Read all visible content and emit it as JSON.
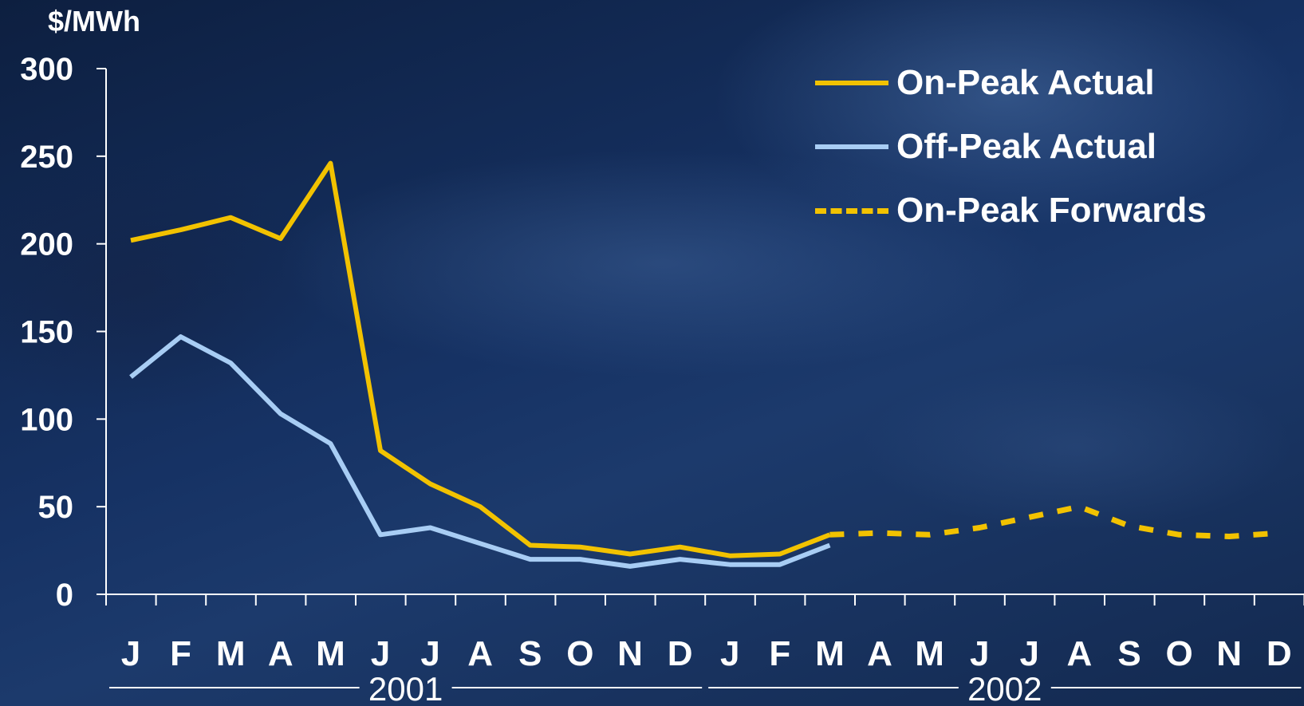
{
  "chart_data": {
    "type": "line",
    "title": "",
    "xlabel": "",
    "ylabel": "$/MWh",
    "ylim": [
      0,
      300
    ],
    "yticks": [
      "0",
      "50",
      "100",
      "150",
      "200",
      "250",
      "300"
    ],
    "categories": [
      "J",
      "F",
      "M",
      "A",
      "M",
      "J",
      "J",
      "A",
      "S",
      "O",
      "N",
      "D",
      "J",
      "F",
      "M",
      "A",
      "M",
      "J",
      "J",
      "A",
      "S",
      "O",
      "N",
      "D"
    ],
    "year_groups": [
      {
        "label": "2001",
        "start": 0,
        "end": 11
      },
      {
        "label": "2002",
        "start": 12,
        "end": 23
      }
    ],
    "grid": false,
    "legend_position": "top-right",
    "series": [
      {
        "name": "On-Peak Actual",
        "color": "#f2c200",
        "style": "solid",
        "values": [
          202,
          208,
          215,
          203,
          246,
          82,
          63,
          50,
          28,
          27,
          23,
          27,
          22,
          23,
          34,
          null,
          null,
          null,
          null,
          null,
          null,
          null,
          null,
          null
        ]
      },
      {
        "name": "Off-Peak Actual",
        "color": "#a8cdf4",
        "style": "solid",
        "values": [
          124,
          147,
          132,
          103,
          86,
          34,
          38,
          29,
          20,
          20,
          16,
          20,
          17,
          17,
          28,
          null,
          null,
          null,
          null,
          null,
          null,
          null,
          null,
          null
        ]
      },
      {
        "name": "On-Peak Forwards",
        "color": "#f2c200",
        "style": "dashed",
        "values": [
          null,
          null,
          null,
          null,
          null,
          null,
          null,
          null,
          null,
          null,
          null,
          null,
          null,
          null,
          34,
          35,
          34,
          38,
          44,
          50,
          39,
          34,
          33,
          35
        ]
      }
    ]
  }
}
